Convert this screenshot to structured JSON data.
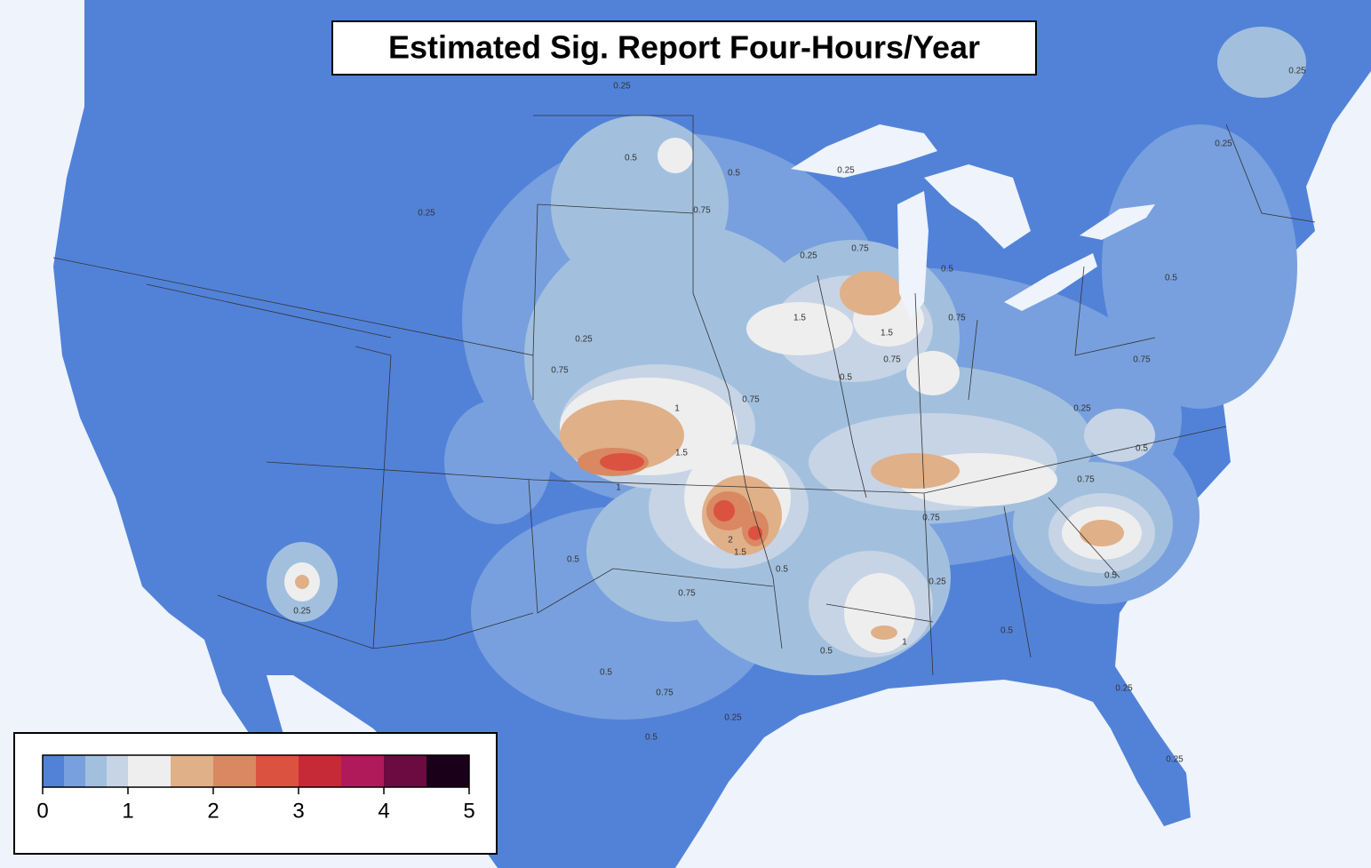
{
  "title": "Estimated Sig. Report Four-Hours/Year",
  "colorbar": {
    "bounds": [
      0,
      0.25,
      0.5,
      0.75,
      1,
      1.5,
      2,
      2.5,
      3,
      3.5,
      4,
      4.5,
      5
    ],
    "colors": [
      "#5282d8",
      "#78a0de",
      "#a2c0de",
      "#c6d4e6",
      "#eeeeee",
      "#e0b088",
      "#d98862",
      "#db5240",
      "#c62a36",
      "#b01a5a",
      "#6c0a42",
      "#1a0018"
    ],
    "ticks": [
      0,
      1,
      2,
      3,
      4,
      5
    ]
  },
  "contour_labels": [
    "0.25",
    "0.5",
    "0.5",
    "0.75",
    "0.25",
    "0.25",
    "0.25",
    "0.75",
    "0.5",
    "1.5",
    "1.5",
    "0.75",
    "0.75",
    "0.5",
    "0.25",
    "0.75",
    "0.75",
    "1",
    "1.5",
    "1",
    "2",
    "1.5",
    "0.5",
    "0.75",
    "0.5",
    "0.25",
    "0.5",
    "0.75",
    "0.25",
    "0.5",
    "0.5",
    "1",
    "0.5",
    "0.25",
    "0.75",
    "0.25",
    "0.5",
    "0.75",
    "0.5",
    "0.25",
    "0.25",
    "0.5",
    "0.75",
    "0.25",
    "0.25"
  ]
}
